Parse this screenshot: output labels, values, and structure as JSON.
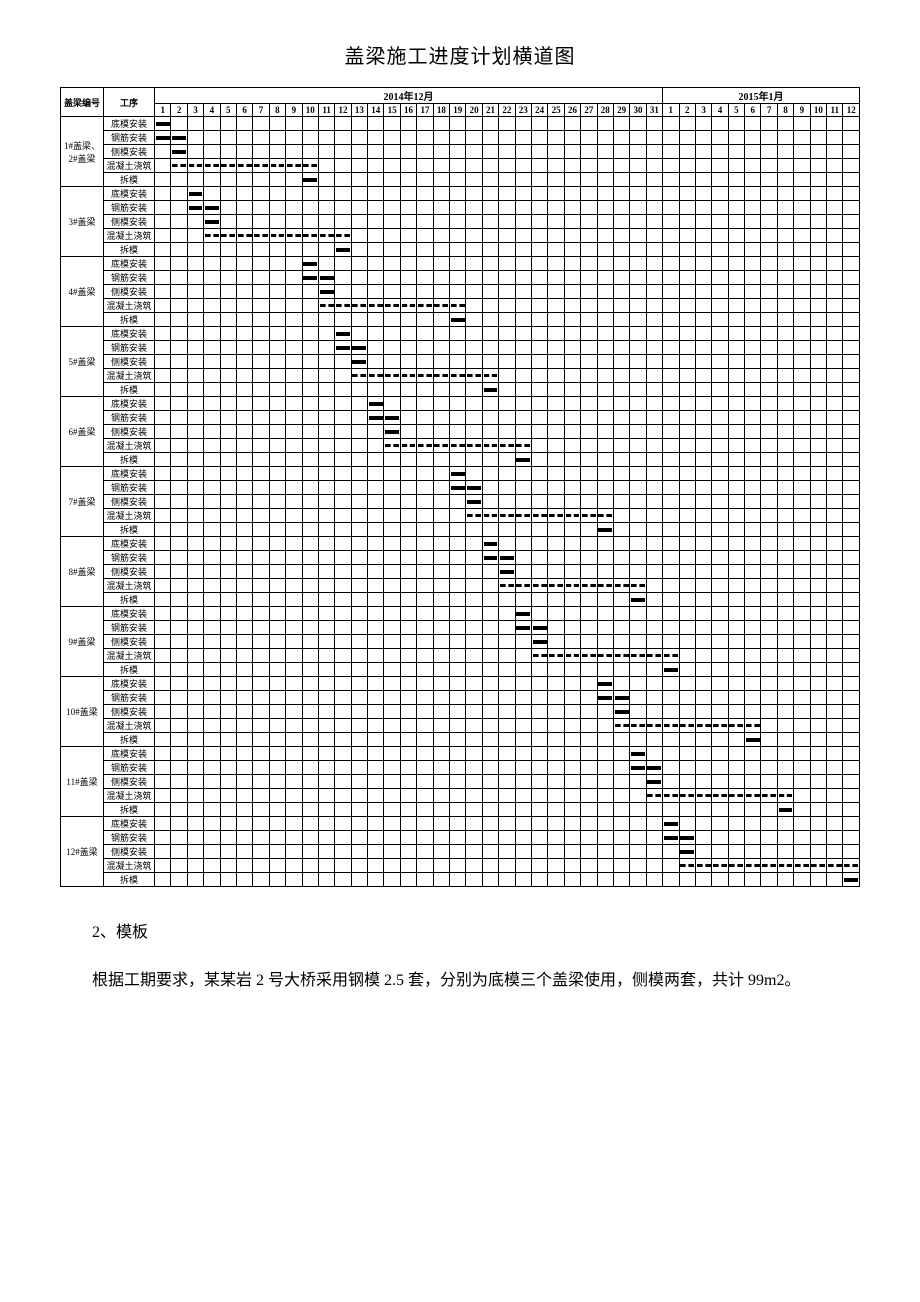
{
  "title": "盖梁施工进度计划横道图",
  "header": {
    "beam_label": "盖梁编号",
    "task_label": "工序",
    "month1": "2014年12月",
    "month2": "2015年1月",
    "days_dec": [
      1,
      2,
      3,
      4,
      5,
      6,
      7,
      8,
      9,
      10,
      11,
      12,
      13,
      14,
      15,
      16,
      17,
      18,
      19,
      20,
      21,
      22,
      23,
      24,
      25,
      26,
      27,
      28,
      29,
      30,
      31
    ],
    "days_jan": [
      1,
      2,
      3,
      4,
      5,
      6,
      7,
      8,
      9,
      10,
      11,
      12
    ]
  },
  "total_days": 43,
  "task_names": [
    "底模安装",
    "钢筋安装",
    "侧模安装",
    "混凝土浇筑",
    "拆模"
  ],
  "beams": [
    {
      "id": "1#盖梁、2#盖梁",
      "tasks": [
        {
          "name": "底模安装",
          "start": 1,
          "end": 1,
          "style": "solid"
        },
        {
          "name": "钢筋安装",
          "start": 1,
          "end": 2,
          "style": "solid"
        },
        {
          "name": "侧模安装",
          "start": 2,
          "end": 2,
          "style": "solid"
        },
        {
          "name": "混凝土浇筑",
          "start": 2,
          "end": 10,
          "style": "dashed"
        },
        {
          "name": "拆模",
          "start": 10,
          "end": 10,
          "style": "solid"
        }
      ]
    },
    {
      "id": "3#盖梁",
      "tasks": [
        {
          "name": "底模安装",
          "start": 3,
          "end": 3,
          "style": "solid"
        },
        {
          "name": "钢筋安装",
          "start": 3,
          "end": 4,
          "style": "solid"
        },
        {
          "name": "侧模安装",
          "start": 4,
          "end": 4,
          "style": "solid"
        },
        {
          "name": "混凝土浇筑",
          "start": 4,
          "end": 12,
          "style": "dashed"
        },
        {
          "name": "拆模",
          "start": 12,
          "end": 12,
          "style": "solid"
        }
      ]
    },
    {
      "id": "4#盖梁",
      "tasks": [
        {
          "name": "底模安装",
          "start": 10,
          "end": 10,
          "style": "solid"
        },
        {
          "name": "钢筋安装",
          "start": 10,
          "end": 11,
          "style": "solid"
        },
        {
          "name": "侧模安装",
          "start": 11,
          "end": 11,
          "style": "solid"
        },
        {
          "name": "混凝土浇筑",
          "start": 11,
          "end": 19,
          "style": "dashed"
        },
        {
          "name": "拆模",
          "start": 19,
          "end": 19,
          "style": "solid"
        }
      ]
    },
    {
      "id": "5#盖梁",
      "tasks": [
        {
          "name": "底模安装",
          "start": 12,
          "end": 12,
          "style": "solid"
        },
        {
          "name": "钢筋安装",
          "start": 12,
          "end": 13,
          "style": "solid"
        },
        {
          "name": "侧模安装",
          "start": 13,
          "end": 13,
          "style": "solid"
        },
        {
          "name": "混凝土浇筑",
          "start": 13,
          "end": 21,
          "style": "dashed"
        },
        {
          "name": "拆模",
          "start": 21,
          "end": 21,
          "style": "solid"
        }
      ]
    },
    {
      "id": "6#盖梁",
      "tasks": [
        {
          "name": "底模安装",
          "start": 14,
          "end": 14,
          "style": "solid"
        },
        {
          "name": "钢筋安装",
          "start": 14,
          "end": 15,
          "style": "solid"
        },
        {
          "name": "侧模安装",
          "start": 15,
          "end": 15,
          "style": "solid"
        },
        {
          "name": "混凝土浇筑",
          "start": 15,
          "end": 23,
          "style": "dashed"
        },
        {
          "name": "拆模",
          "start": 23,
          "end": 23,
          "style": "solid"
        }
      ]
    },
    {
      "id": "7#盖梁",
      "tasks": [
        {
          "name": "底模安装",
          "start": 19,
          "end": 19,
          "style": "solid"
        },
        {
          "name": "钢筋安装",
          "start": 19,
          "end": 20,
          "style": "solid"
        },
        {
          "name": "侧模安装",
          "start": 20,
          "end": 20,
          "style": "solid"
        },
        {
          "name": "混凝土浇筑",
          "start": 20,
          "end": 28,
          "style": "dashed"
        },
        {
          "name": "拆模",
          "start": 28,
          "end": 28,
          "style": "solid"
        }
      ]
    },
    {
      "id": "8#盖梁",
      "tasks": [
        {
          "name": "底模安装",
          "start": 21,
          "end": 21,
          "style": "solid"
        },
        {
          "name": "钢筋安装",
          "start": 21,
          "end": 22,
          "style": "solid"
        },
        {
          "name": "侧模安装",
          "start": 22,
          "end": 22,
          "style": "solid"
        },
        {
          "name": "混凝土浇筑",
          "start": 22,
          "end": 30,
          "style": "dashed"
        },
        {
          "name": "拆模",
          "start": 30,
          "end": 30,
          "style": "solid"
        }
      ]
    },
    {
      "id": "9#盖梁",
      "tasks": [
        {
          "name": "底模安装",
          "start": 23,
          "end": 23,
          "style": "solid"
        },
        {
          "name": "钢筋安装",
          "start": 23,
          "end": 24,
          "style": "solid"
        },
        {
          "name": "侧模安装",
          "start": 24,
          "end": 24,
          "style": "solid"
        },
        {
          "name": "混凝土浇筑",
          "start": 24,
          "end": 32,
          "style": "dashed"
        },
        {
          "name": "拆模",
          "start": 32,
          "end": 32,
          "style": "solid"
        }
      ]
    },
    {
      "id": "10#盖梁",
      "tasks": [
        {
          "name": "底模安装",
          "start": 28,
          "end": 28,
          "style": "solid"
        },
        {
          "name": "钢筋安装",
          "start": 28,
          "end": 29,
          "style": "solid"
        },
        {
          "name": "侧模安装",
          "start": 29,
          "end": 29,
          "style": "solid"
        },
        {
          "name": "混凝土浇筑",
          "start": 29,
          "end": 37,
          "style": "dashed"
        },
        {
          "name": "拆模",
          "start": 37,
          "end": 37,
          "style": "solid"
        }
      ]
    },
    {
      "id": "11#盖梁",
      "tasks": [
        {
          "name": "底模安装",
          "start": 30,
          "end": 30,
          "style": "solid"
        },
        {
          "name": "钢筋安装",
          "start": 30,
          "end": 31,
          "style": "solid"
        },
        {
          "name": "侧模安装",
          "start": 31,
          "end": 31,
          "style": "solid"
        },
        {
          "name": "混凝土浇筑",
          "start": 31,
          "end": 39,
          "style": "dashed"
        },
        {
          "name": "拆模",
          "start": 39,
          "end": 39,
          "style": "solid"
        }
      ]
    },
    {
      "id": "12#盖梁",
      "tasks": [
        {
          "name": "底模安装",
          "start": 32,
          "end": 32,
          "style": "solid"
        },
        {
          "name": "钢筋安装",
          "start": 32,
          "end": 33,
          "style": "solid"
        },
        {
          "name": "侧模安装",
          "start": 33,
          "end": 33,
          "style": "solid"
        },
        {
          "name": "混凝土浇筑",
          "start": 33,
          "end": 43,
          "style": "dashed"
        },
        {
          "name": "拆模",
          "start": 43,
          "end": 43,
          "style": "solid"
        }
      ]
    }
  ],
  "body": {
    "section_num": "2、模板",
    "para": "根据工期要求，某某岩 2 号大桥采用钢模 2.5 套，分别为底模三个盖梁使用，侧模两套，共计 99m2。"
  }
}
